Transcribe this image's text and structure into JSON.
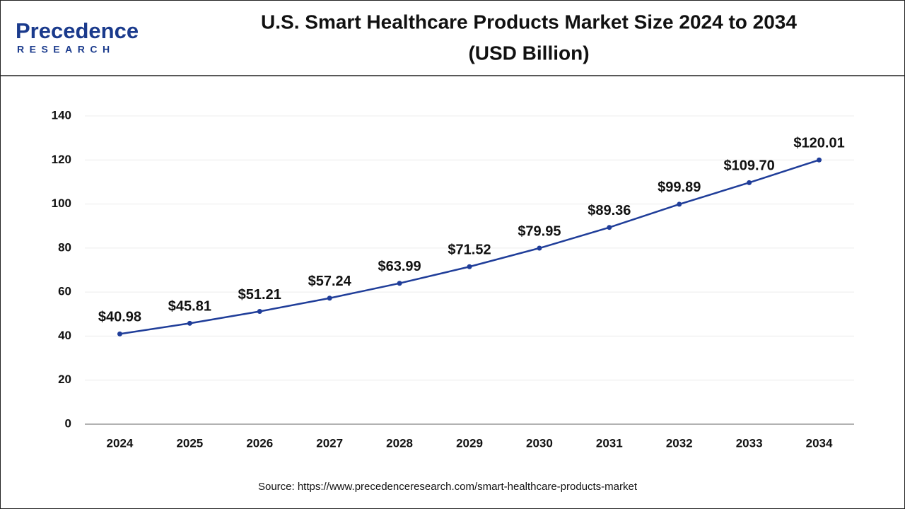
{
  "header": {
    "brand": "Precedence",
    "tagline": "RESEARCH"
  },
  "chart_data": {
    "type": "line",
    "title": [
      "U.S. Smart Healthcare Products Market Size 2024 to 2034",
      "(USD Billion)"
    ],
    "categories": [
      "2024",
      "2025",
      "2026",
      "2027",
      "2028",
      "2029",
      "2030",
      "2031",
      "2032",
      "2033",
      "2034"
    ],
    "values": [
      40.98,
      45.81,
      51.21,
      57.24,
      63.99,
      71.52,
      79.95,
      89.36,
      99.89,
      109.7,
      120.01
    ],
    "value_labels": [
      "$40.98",
      "$45.81",
      "$51.21",
      "$57.24",
      "$63.99",
      "$71.52",
      "$79.95",
      "$89.36",
      "$99.89",
      "$109.70",
      "$120.01"
    ],
    "color": "#1f3d99",
    "ylim": [
      0,
      140
    ],
    "yticks": [
      0,
      20,
      40,
      60,
      80,
      100,
      120,
      140
    ],
    "grid": true,
    "source": "Source: https://www.precedenceresearch.com/smart-healthcare-products-market"
  }
}
